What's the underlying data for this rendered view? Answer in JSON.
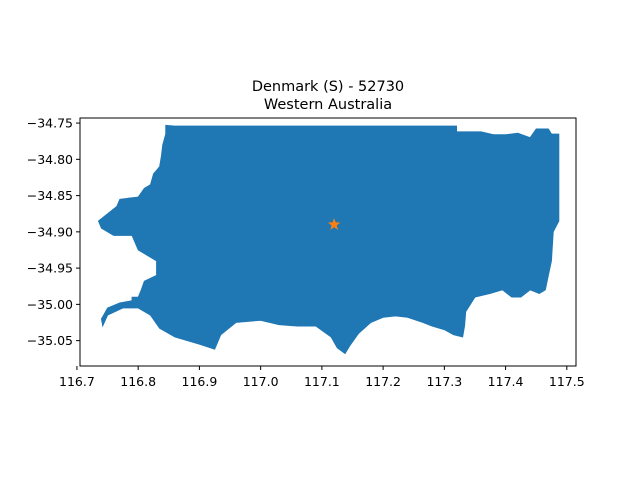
{
  "chart_data": {
    "type": "map",
    "title_line1": "Denmark (S) - 52730",
    "title_line2": "Western Australia",
    "xlim": [
      116.705,
      117.515
    ],
    "ylim": [
      -35.085,
      -34.743
    ],
    "x_ticks": [
      116.7,
      116.8,
      116.9,
      117.0,
      117.1,
      117.2,
      117.3,
      117.4,
      117.5
    ],
    "x_tick_labels": [
      "116.7",
      "116.8",
      "116.9",
      "117.0",
      "117.1",
      "117.2",
      "117.3",
      "117.4",
      "117.5"
    ],
    "y_ticks": [
      -34.75,
      -34.8,
      -34.85,
      -34.9,
      -34.95,
      -35.0,
      -35.05
    ],
    "y_tick_labels": [
      "−34.75",
      "−34.80",
      "−34.85",
      "−34.90",
      "−34.95",
      "−35.00",
      "−35.05"
    ],
    "region_name": "Denmark (S) - 52730",
    "region_color": "#1f77b4",
    "marker": {
      "lon": 117.12,
      "lat": -34.89,
      "shape": "star",
      "color": "#ff7f0e"
    },
    "grid": false,
    "outline": [
      [
        116.845,
        -34.753
      ],
      [
        116.86,
        -34.754
      ],
      [
        117.32,
        -34.754
      ],
      [
        117.32,
        -34.762
      ],
      [
        117.36,
        -34.762
      ],
      [
        117.38,
        -34.766
      ],
      [
        117.4,
        -34.766
      ],
      [
        117.42,
        -34.764
      ],
      [
        117.44,
        -34.77
      ],
      [
        117.45,
        -34.758
      ],
      [
        117.47,
        -34.758
      ],
      [
        117.475,
        -34.765
      ],
      [
        117.487,
        -34.765
      ],
      [
        117.487,
        -34.885
      ],
      [
        117.478,
        -34.9
      ],
      [
        117.475,
        -34.94
      ],
      [
        117.47,
        -34.96
      ],
      [
        117.465,
        -34.98
      ],
      [
        117.455,
        -34.985
      ],
      [
        117.44,
        -34.98
      ],
      [
        117.425,
        -34.99
      ],
      [
        117.41,
        -34.99
      ],
      [
        117.395,
        -34.98
      ],
      [
        117.375,
        -34.985
      ],
      [
        117.35,
        -34.99
      ],
      [
        117.335,
        -35.01
      ],
      [
        117.333,
        -35.03
      ],
      [
        117.33,
        -35.045
      ],
      [
        117.315,
        -35.042
      ],
      [
        117.3,
        -35.035
      ],
      [
        117.28,
        -35.03
      ],
      [
        117.265,
        -35.025
      ],
      [
        117.24,
        -35.018
      ],
      [
        117.22,
        -35.016
      ],
      [
        117.2,
        -35.018
      ],
      [
        117.18,
        -35.025
      ],
      [
        117.16,
        -35.04
      ],
      [
        117.145,
        -35.058
      ],
      [
        117.138,
        -35.068
      ],
      [
        117.125,
        -35.06
      ],
      [
        117.115,
        -35.045
      ],
      [
        117.09,
        -35.03
      ],
      [
        117.06,
        -35.03
      ],
      [
        117.03,
        -35.028
      ],
      [
        117.0,
        -35.022
      ],
      [
        116.96,
        -35.025
      ],
      [
        116.935,
        -35.042
      ],
      [
        116.925,
        -35.062
      ],
      [
        116.9,
        -35.055
      ],
      [
        116.86,
        -35.045
      ],
      [
        116.835,
        -35.033
      ],
      [
        116.82,
        -35.015
      ],
      [
        116.8,
        -35.005
      ],
      [
        116.775,
        -35.005
      ],
      [
        116.75,
        -35.015
      ],
      [
        116.742,
        -35.03
      ],
      [
        116.74,
        -35.02
      ],
      [
        116.75,
        -35.005
      ],
      [
        116.77,
        -34.998
      ],
      [
        116.79,
        -34.995
      ],
      [
        116.79,
        -34.99
      ],
      [
        116.8,
        -34.99
      ],
      [
        116.805,
        -34.98
      ],
      [
        116.81,
        -34.968
      ],
      [
        116.83,
        -34.96
      ],
      [
        116.83,
        -34.94
      ],
      [
        116.8,
        -34.925
      ],
      [
        116.79,
        -34.905
      ],
      [
        116.76,
        -34.905
      ],
      [
        116.74,
        -34.895
      ],
      [
        116.735,
        -34.885
      ],
      [
        116.75,
        -34.875
      ],
      [
        116.765,
        -34.865
      ],
      [
        116.77,
        -34.855
      ],
      [
        116.8,
        -34.852
      ],
      [
        116.81,
        -34.84
      ],
      [
        116.82,
        -34.835
      ],
      [
        116.825,
        -34.82
      ],
      [
        116.835,
        -34.81
      ],
      [
        116.838,
        -34.795
      ],
      [
        116.84,
        -34.78
      ],
      [
        116.845,
        -34.765
      ]
    ]
  }
}
